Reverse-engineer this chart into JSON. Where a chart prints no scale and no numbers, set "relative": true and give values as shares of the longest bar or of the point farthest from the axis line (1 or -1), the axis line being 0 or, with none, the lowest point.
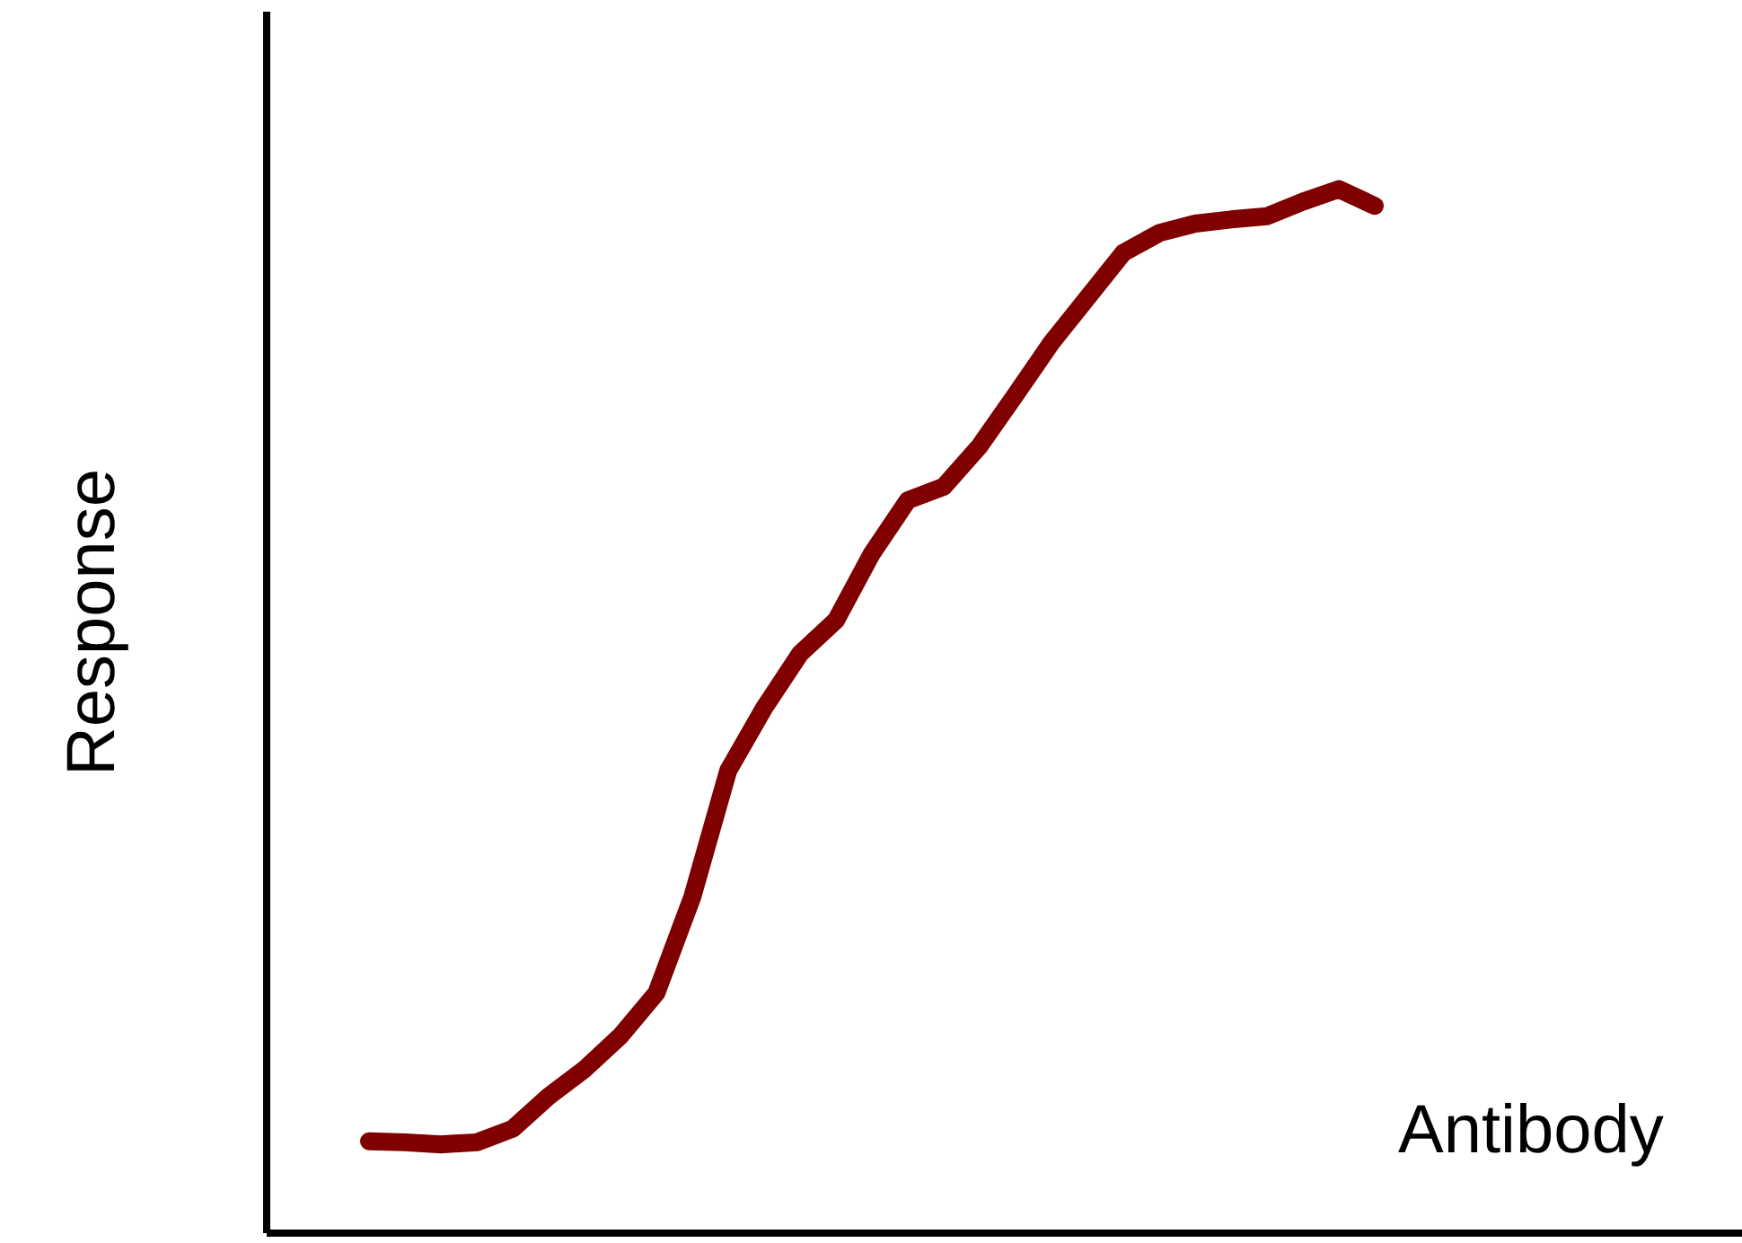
{
  "chart_data": {
    "type": "line",
    "relative": true,
    "xlabel": "Antibody",
    "ylabel": "Response",
    "categories": [
      null,
      null,
      null,
      null,
      null,
      null,
      null,
      null,
      null,
      null,
      null,
      null,
      null,
      null,
      null,
      null,
      null,
      null,
      null,
      null,
      null,
      null,
      null,
      null,
      null,
      null,
      null,
      null,
      null
    ],
    "series": [
      {
        "color": "#800000",
        "values": [
          0.088,
          0.087,
          0.085,
          0.087,
          0.1,
          0.131,
          0.157,
          0.189,
          0.23,
          0.322,
          0.443,
          0.503,
          0.555,
          0.587,
          0.651,
          0.702,
          0.715,
          0.754,
          0.803,
          0.853,
          0.896,
          0.939,
          0.958,
          0.967,
          0.971,
          0.974,
          0.988,
          1.0,
          0.984
        ]
      }
    ]
  }
}
